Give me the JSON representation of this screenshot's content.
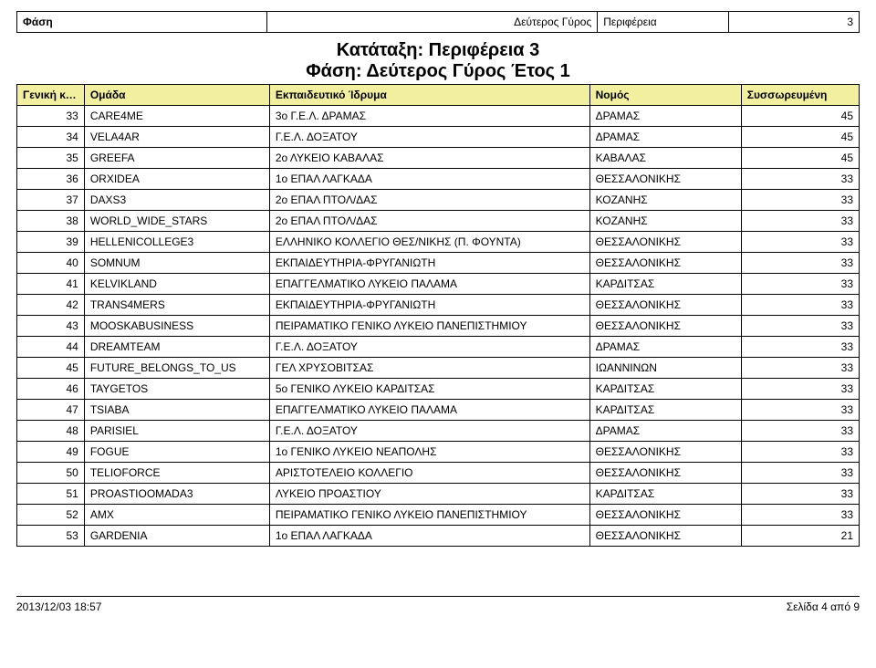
{
  "phase_header": {
    "phase_label": "Φάση",
    "phase_value": "Δεύτερος Γύρος",
    "region_label": "Περιφέρεια",
    "region_value": "3"
  },
  "title": {
    "line1": "Κατάταξη: Περιφέρεια 3",
    "line2": "Φάση: Δεύτερος Γύρος Έτος 1"
  },
  "table": {
    "columns": {
      "rank": "Γενική κατάταξη",
      "team": "Ομάδα",
      "institution": "Εκπαιδευτικό Ίδρυμα",
      "prefecture": "Νομός",
      "score": "Συσσωρευμένη"
    },
    "rows": [
      {
        "rank": 33,
        "team": "CARE4ME",
        "institution": "3ο Γ.Ε.Λ. ΔΡΑΜΑΣ",
        "prefecture": "ΔΡΑΜΑΣ",
        "score": 45
      },
      {
        "rank": 34,
        "team": "VELA4AR",
        "institution": "Γ.Ε.Λ. ΔΟΞΑΤΟΥ",
        "prefecture": "ΔΡΑΜΑΣ",
        "score": 45
      },
      {
        "rank": 35,
        "team": "GREEFA",
        "institution": "2ο ΛΥΚΕΙΟ ΚΑΒΑΛΑΣ",
        "prefecture": "ΚΑΒΑΛΑΣ",
        "score": 45
      },
      {
        "rank": 36,
        "team": "ORXIDEA",
        "institution": "1ο ΕΠΑΛ ΛΑΓΚΑΔΑ",
        "prefecture": "ΘΕΣΣΑΛΟΝΙΚΗΣ",
        "score": 33
      },
      {
        "rank": 37,
        "team": "DAXS3",
        "institution": "2ο ΕΠΑΛ ΠΤΟΛ/ΔΑΣ",
        "prefecture": "ΚΟΖΑΝΗΣ",
        "score": 33
      },
      {
        "rank": 38,
        "team": "WORLD_WIDE_STARS",
        "institution": "2ο ΕΠΑΛ ΠΤΟΛ/ΔΑΣ",
        "prefecture": "ΚΟΖΑΝΗΣ",
        "score": 33
      },
      {
        "rank": 39,
        "team": "HELLENICOLLEGE3",
        "institution": "ΕΛΛΗΝΙΚΟ ΚΟΛΛΕΓΙΟ ΘΕΣ/ΝΙΚΗΣ (Π. ΦΟΥΝΤΑ)",
        "prefecture": "ΘΕΣΣΑΛΟΝΙΚΗΣ",
        "score": 33
      },
      {
        "rank": 40,
        "team": "SOMNUM",
        "institution": "ΕΚΠΑΙΔΕΥΤΗΡΙΑ-ΦΡΥΓΑΝΙΩΤΗ",
        "prefecture": "ΘΕΣΣΑΛΟΝΙΚΗΣ",
        "score": 33
      },
      {
        "rank": 41,
        "team": "KELVIKLAND",
        "institution": "ΕΠΑΓΓΕΛΜΑΤΙΚΟ ΛΥΚΕΙΟ ΠΑΛΑΜΑ",
        "prefecture": "ΚΑΡΔΙΤΣΑΣ",
        "score": 33
      },
      {
        "rank": 42,
        "team": "TRANS4MERS",
        "institution": "ΕΚΠΑΙΔΕΥΤΗΡΙΑ-ΦΡΥΓΑΝΙΩΤΗ",
        "prefecture": "ΘΕΣΣΑΛΟΝΙΚΗΣ",
        "score": 33
      },
      {
        "rank": 43,
        "team": "MOOSKABUSINESS",
        "institution": "ΠΕΙΡΑΜΑΤΙΚΟ ΓΕΝΙΚΟ ΛΥΚΕΙΟ ΠΑΝΕΠΙΣΤΗΜΙΟΥ",
        "prefecture": "ΘΕΣΣΑΛΟΝΙΚΗΣ",
        "score": 33
      },
      {
        "rank": 44,
        "team": "DREAMTEAM",
        "institution": "Γ.Ε.Λ. ΔΟΞΑΤΟΥ",
        "prefecture": "ΔΡΑΜΑΣ",
        "score": 33
      },
      {
        "rank": 45,
        "team": "FUTURE_BELONGS_TO_US",
        "institution": "ΓΕΛ ΧΡΥΣΟΒΙΤΣΑΣ",
        "prefecture": "ΙΩΑΝΝΙΝΩΝ",
        "score": 33
      },
      {
        "rank": 46,
        "team": "TAYGETOS",
        "institution": "5ο ΓΕΝΙΚΟ ΛΥΚΕΙΟ ΚΑΡΔΙΤΣΑΣ",
        "prefecture": "ΚΑΡΔΙΤΣΑΣ",
        "score": 33
      },
      {
        "rank": 47,
        "team": "TSIABA",
        "institution": "ΕΠΑΓΓΕΛΜΑΤΙΚΟ ΛΥΚΕΙΟ ΠΑΛΑΜΑ",
        "prefecture": "ΚΑΡΔΙΤΣΑΣ",
        "score": 33
      },
      {
        "rank": 48,
        "team": "PARISIEL",
        "institution": "Γ.Ε.Λ. ΔΟΞΑΤΟΥ",
        "prefecture": "ΔΡΑΜΑΣ",
        "score": 33
      },
      {
        "rank": 49,
        "team": "FOGUE",
        "institution": "1ο ΓΕΝΙΚΟ ΛΥΚΕΙΟ ΝΕΑΠΟΛΗΣ",
        "prefecture": "ΘΕΣΣΑΛΟΝΙΚΗΣ",
        "score": 33
      },
      {
        "rank": 50,
        "team": "TELIOFORCE",
        "institution": "ΑΡΙΣΤΟΤΕΛΕΙΟ ΚΟΛΛΕΓΙΟ",
        "prefecture": "ΘΕΣΣΑΛΟΝΙΚΗΣ",
        "score": 33
      },
      {
        "rank": 51,
        "team": "PROASTIOOMADA3",
        "institution": "ΛΥΚΕΙΟ ΠΡΟΑΣΤΙΟΥ",
        "prefecture": "ΚΑΡΔΙΤΣΑΣ",
        "score": 33
      },
      {
        "rank": 52,
        "team": "AMX",
        "institution": "ΠΕΙΡΑΜΑΤΙΚΟ ΓΕΝΙΚΟ ΛΥΚΕΙΟ ΠΑΝΕΠΙΣΤΗΜΙΟΥ",
        "prefecture": "ΘΕΣΣΑΛΟΝΙΚΗΣ",
        "score": 33
      },
      {
        "rank": 53,
        "team": "GARDENIA",
        "institution": "1ο ΕΠΑΛ ΛΑΓΚΑΔΑ",
        "prefecture": "ΘΕΣΣΑΛΟΝΙΚΗΣ",
        "score": 21
      }
    ]
  },
  "footer": {
    "timestamp": "2013/12/03 18:57",
    "page": "Σελίδα 4 από 9"
  },
  "styling": {
    "header_bg": "#f2ef9e",
    "border_color": "#000000",
    "background_color": "#ffffff",
    "text_color": "#000000",
    "body_fontsize": 12,
    "title_fontsize": 20,
    "title_weight": "bold",
    "header_weight": "bold",
    "column_widths_pct": {
      "rank": 8,
      "team": 22,
      "institution": 38,
      "prefecture": 18,
      "score": 14
    }
  }
}
